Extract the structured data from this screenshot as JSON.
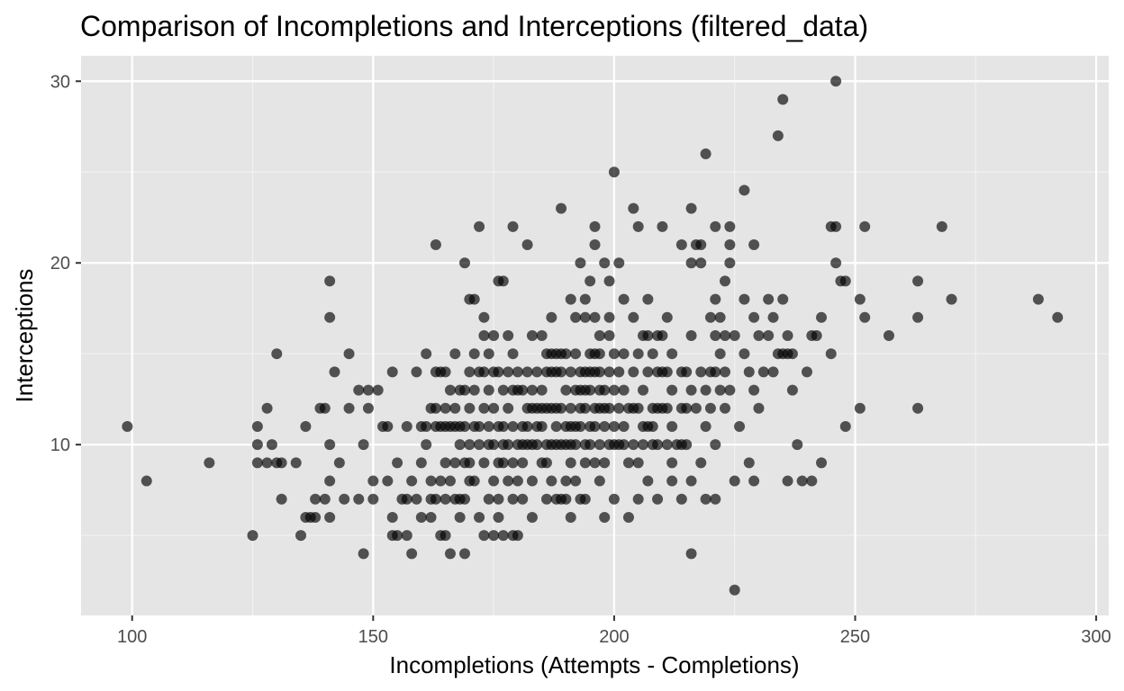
{
  "chart_data": {
    "type": "scatter",
    "title": "Comparison of Incompletions and Interceptions (filtered_data)",
    "xlabel": "Incompletions (Attempts - Completions)",
    "ylabel": "Interceptions",
    "xlim": [
      89.4,
      302.6
    ],
    "ylim": [
      0.6,
      31.4
    ],
    "xticks": [
      100,
      150,
      200,
      250,
      300
    ],
    "yticks": [
      10,
      20,
      30
    ],
    "grid": true,
    "background": "#e5e5e5",
    "point_color": "#000000",
    "point_opacity": 0.65,
    "points": [
      [
        99,
        11
      ],
      [
        103,
        8
      ],
      [
        116,
        9
      ],
      [
        125,
        5
      ],
      [
        126,
        11
      ],
      [
        126,
        10
      ],
      [
        126,
        9
      ],
      [
        128,
        9
      ],
      [
        128,
        12
      ],
      [
        129,
        10
      ],
      [
        130,
        9
      ],
      [
        130,
        15
      ],
      [
        131,
        9
      ],
      [
        131,
        7
      ],
      [
        134,
        9
      ],
      [
        135,
        5
      ],
      [
        136,
        6
      ],
      [
        136,
        11
      ],
      [
        137,
        6
      ],
      [
        138,
        6
      ],
      [
        138,
        7
      ],
      [
        139,
        12
      ],
      [
        140,
        12
      ],
      [
        140,
        7
      ],
      [
        141,
        19
      ],
      [
        141,
        17
      ],
      [
        141,
        10
      ],
      [
        141,
        8
      ],
      [
        141,
        6
      ],
      [
        142,
        14
      ],
      [
        143,
        9
      ],
      [
        144,
        7
      ],
      [
        145,
        15
      ],
      [
        145,
        12
      ],
      [
        147,
        13
      ],
      [
        147,
        7
      ],
      [
        148,
        10
      ],
      [
        148,
        4
      ],
      [
        149,
        13
      ],
      [
        149,
        12
      ],
      [
        150,
        8
      ],
      [
        150,
        7
      ],
      [
        151,
        13
      ],
      [
        152,
        11
      ],
      [
        153,
        11
      ],
      [
        153,
        8
      ],
      [
        154,
        14
      ],
      [
        154,
        6
      ],
      [
        154,
        5
      ],
      [
        155,
        9
      ],
      [
        155,
        5
      ],
      [
        156,
        7
      ],
      [
        157,
        11
      ],
      [
        157,
        7
      ],
      [
        157,
        5
      ],
      [
        158,
        8
      ],
      [
        158,
        4
      ],
      [
        159,
        14
      ],
      [
        159,
        7
      ],
      [
        160,
        11
      ],
      [
        160,
        9
      ],
      [
        160,
        6
      ],
      [
        161,
        15
      ],
      [
        161,
        11
      ],
      [
        161,
        10
      ],
      [
        162,
        12
      ],
      [
        162,
        8
      ],
      [
        162,
        7
      ],
      [
        162,
        6
      ],
      [
        163,
        14
      ],
      [
        163,
        12
      ],
      [
        163,
        11
      ],
      [
        163,
        7
      ],
      [
        163,
        21
      ],
      [
        164,
        14
      ],
      [
        164,
        11
      ],
      [
        164,
        8
      ],
      [
        164,
        5
      ],
      [
        165,
        14
      ],
      [
        165,
        12
      ],
      [
        165,
        11
      ],
      [
        165,
        9
      ],
      [
        165,
        7
      ],
      [
        165,
        5
      ],
      [
        166,
        13
      ],
      [
        166,
        11
      ],
      [
        166,
        8
      ],
      [
        166,
        4
      ],
      [
        167,
        15
      ],
      [
        167,
        12
      ],
      [
        167,
        11
      ],
      [
        167,
        9
      ],
      [
        167,
        7
      ],
      [
        168,
        13
      ],
      [
        168,
        11
      ],
      [
        168,
        10
      ],
      [
        168,
        7
      ],
      [
        168,
        6
      ],
      [
        169,
        13
      ],
      [
        169,
        11
      ],
      [
        169,
        9
      ],
      [
        169,
        7
      ],
      [
        169,
        4
      ],
      [
        169,
        20
      ],
      [
        170,
        14
      ],
      [
        170,
        12
      ],
      [
        170,
        10
      ],
      [
        170,
        9
      ],
      [
        170,
        8
      ],
      [
        170,
        18
      ],
      [
        171,
        15
      ],
      [
        171,
        13
      ],
      [
        171,
        11
      ],
      [
        171,
        8
      ],
      [
        171,
        18
      ],
      [
        172,
        14
      ],
      [
        172,
        11
      ],
      [
        172,
        10
      ],
      [
        172,
        6
      ],
      [
        172,
        22
      ],
      [
        173,
        16
      ],
      [
        173,
        14
      ],
      [
        173,
        12
      ],
      [
        173,
        9
      ],
      [
        173,
        5
      ],
      [
        173,
        17
      ],
      [
        174,
        15
      ],
      [
        174,
        13
      ],
      [
        174,
        11
      ],
      [
        174,
        10
      ],
      [
        174,
        7
      ],
      [
        175,
        14
      ],
      [
        175,
        12
      ],
      [
        175,
        10
      ],
      [
        175,
        8
      ],
      [
        175,
        5
      ],
      [
        175,
        16
      ],
      [
        176,
        14
      ],
      [
        176,
        11
      ],
      [
        176,
        9
      ],
      [
        176,
        7
      ],
      [
        176,
        6
      ],
      [
        176,
        19
      ],
      [
        177,
        13
      ],
      [
        177,
        11
      ],
      [
        177,
        10
      ],
      [
        177,
        9
      ],
      [
        177,
        5
      ],
      [
        177,
        19
      ],
      [
        178,
        14
      ],
      [
        178,
        12
      ],
      [
        178,
        10
      ],
      [
        178,
        8
      ],
      [
        178,
        16
      ],
      [
        179,
        15
      ],
      [
        179,
        13
      ],
      [
        179,
        11
      ],
      [
        179,
        9
      ],
      [
        179,
        7
      ],
      [
        179,
        5
      ],
      [
        179,
        22
      ],
      [
        180,
        14
      ],
      [
        180,
        13
      ],
      [
        180,
        10
      ],
      [
        180,
        8
      ],
      [
        180,
        5
      ],
      [
        181,
        13
      ],
      [
        181,
        11
      ],
      [
        181,
        10
      ],
      [
        181,
        9
      ],
      [
        181,
        7
      ],
      [
        182,
        14
      ],
      [
        182,
        12
      ],
      [
        182,
        11
      ],
      [
        182,
        10
      ],
      [
        182,
        21
      ],
      [
        183,
        16
      ],
      [
        183,
        13
      ],
      [
        183,
        12
      ],
      [
        183,
        10
      ],
      [
        183,
        8
      ],
      [
        183,
        6
      ],
      [
        184,
        14
      ],
      [
        184,
        12
      ],
      [
        184,
        11
      ],
      [
        184,
        10
      ],
      [
        185,
        13
      ],
      [
        185,
        12
      ],
      [
        185,
        11
      ],
      [
        185,
        9
      ],
      [
        185,
        16
      ],
      [
        186,
        15
      ],
      [
        186,
        14
      ],
      [
        186,
        12
      ],
      [
        186,
        10
      ],
      [
        186,
        9
      ],
      [
        186,
        7
      ],
      [
        187,
        15
      ],
      [
        187,
        14
      ],
      [
        187,
        12
      ],
      [
        187,
        10
      ],
      [
        187,
        8
      ],
      [
        187,
        17
      ],
      [
        188,
        15
      ],
      [
        188,
        14
      ],
      [
        188,
        12
      ],
      [
        188,
        11
      ],
      [
        188,
        10
      ],
      [
        188,
        7
      ],
      [
        189,
        15
      ],
      [
        189,
        14
      ],
      [
        189,
        12
      ],
      [
        189,
        10
      ],
      [
        189,
        7
      ],
      [
        189,
        23
      ],
      [
        190,
        15
      ],
      [
        190,
        13
      ],
      [
        190,
        11
      ],
      [
        190,
        10
      ],
      [
        190,
        8
      ],
      [
        190,
        7
      ],
      [
        191,
        18
      ],
      [
        191,
        14
      ],
      [
        191,
        12
      ],
      [
        191,
        11
      ],
      [
        191,
        10
      ],
      [
        191,
        9
      ],
      [
        191,
        6
      ],
      [
        192,
        17
      ],
      [
        192,
        15
      ],
      [
        192,
        13
      ],
      [
        192,
        11
      ],
      [
        192,
        10
      ],
      [
        192,
        8
      ],
      [
        193,
        14
      ],
      [
        193,
        13
      ],
      [
        193,
        12
      ],
      [
        193,
        11
      ],
      [
        193,
        7
      ],
      [
        193,
        20
      ],
      [
        194,
        18
      ],
      [
        194,
        17
      ],
      [
        194,
        14
      ],
      [
        194,
        13
      ],
      [
        194,
        12
      ],
      [
        194,
        10
      ],
      [
        194,
        9
      ],
      [
        194,
        7
      ],
      [
        195,
        15
      ],
      [
        195,
        14
      ],
      [
        195,
        13
      ],
      [
        195,
        11
      ],
      [
        195,
        10
      ],
      [
        195,
        19
      ],
      [
        196,
        17
      ],
      [
        196,
        15
      ],
      [
        196,
        14
      ],
      [
        196,
        12
      ],
      [
        196,
        11
      ],
      [
        196,
        9
      ],
      [
        196,
        22
      ],
      [
        196,
        21
      ],
      [
        197,
        16
      ],
      [
        197,
        14
      ],
      [
        197,
        13
      ],
      [
        197,
        12
      ],
      [
        197,
        10
      ],
      [
        197,
        8
      ],
      [
        197,
        15
      ],
      [
        198,
        13
      ],
      [
        198,
        12
      ],
      [
        198,
        11
      ],
      [
        198,
        9
      ],
      [
        198,
        6
      ],
      [
        198,
        20
      ],
      [
        199,
        16
      ],
      [
        199,
        14
      ],
      [
        199,
        12
      ],
      [
        199,
        10
      ],
      [
        199,
        17
      ],
      [
        199,
        19
      ],
      [
        200,
        15
      ],
      [
        200,
        13
      ],
      [
        200,
        11
      ],
      [
        200,
        10
      ],
      [
        200,
        7
      ],
      [
        200,
        25
      ],
      [
        201,
        14
      ],
      [
        201,
        12
      ],
      [
        201,
        10
      ],
      [
        201,
        20
      ],
      [
        202,
        15
      ],
      [
        202,
        13
      ],
      [
        202,
        11
      ],
      [
        202,
        10
      ],
      [
        202,
        18
      ],
      [
        203,
        12
      ],
      [
        203,
        9
      ],
      [
        203,
        6
      ],
      [
        204,
        17
      ],
      [
        204,
        14
      ],
      [
        204,
        12
      ],
      [
        204,
        10
      ],
      [
        204,
        23
      ],
      [
        205,
        15
      ],
      [
        205,
        12
      ],
      [
        205,
        9
      ],
      [
        205,
        7
      ],
      [
        205,
        22
      ],
      [
        206,
        16
      ],
      [
        206,
        13
      ],
      [
        206,
        11
      ],
      [
        206,
        10
      ],
      [
        207,
        18
      ],
      [
        207,
        16
      ],
      [
        207,
        14
      ],
      [
        207,
        11
      ],
      [
        207,
        8
      ],
      [
        208,
        15
      ],
      [
        208,
        12
      ],
      [
        208,
        11
      ],
      [
        208,
        10
      ],
      [
        209,
        16
      ],
      [
        209,
        14
      ],
      [
        209,
        12
      ],
      [
        209,
        10
      ],
      [
        209,
        7
      ],
      [
        210,
        16
      ],
      [
        210,
        14
      ],
      [
        210,
        12
      ],
      [
        210,
        22
      ],
      [
        211,
        17
      ],
      [
        211,
        14
      ],
      [
        211,
        12
      ],
      [
        211,
        10
      ],
      [
        212,
        15
      ],
      [
        212,
        13
      ],
      [
        212,
        11
      ],
      [
        212,
        9
      ],
      [
        212,
        8
      ],
      [
        213,
        10
      ],
      [
        214,
        21
      ],
      [
        214,
        14
      ],
      [
        214,
        12
      ],
      [
        214,
        10
      ],
      [
        214,
        7
      ],
      [
        215,
        14
      ],
      [
        215,
        12
      ],
      [
        215,
        10
      ],
      [
        216,
        23
      ],
      [
        216,
        20
      ],
      [
        216,
        16
      ],
      [
        216,
        13
      ],
      [
        216,
        8
      ],
      [
        216,
        4
      ],
      [
        217,
        21
      ],
      [
        217,
        12
      ],
      [
        218,
        21
      ],
      [
        218,
        20
      ],
      [
        218,
        14
      ],
      [
        218,
        9
      ],
      [
        219,
        13
      ],
      [
        219,
        11
      ],
      [
        219,
        7
      ],
      [
        219,
        26
      ],
      [
        220,
        17
      ],
      [
        220,
        14
      ],
      [
        220,
        12
      ],
      [
        221,
        22
      ],
      [
        221,
        18
      ],
      [
        221,
        16
      ],
      [
        221,
        14
      ],
      [
        221,
        10
      ],
      [
        221,
        7
      ],
      [
        222,
        17
      ],
      [
        222,
        15
      ],
      [
        222,
        13
      ],
      [
        223,
        19
      ],
      [
        223,
        16
      ],
      [
        223,
        14
      ],
      [
        223,
        12
      ],
      [
        224,
        21
      ],
      [
        224,
        20
      ],
      [
        224,
        22
      ],
      [
        224,
        13
      ],
      [
        225,
        16
      ],
      [
        225,
        8
      ],
      [
        225,
        2
      ],
      [
        226,
        11
      ],
      [
        227,
        24
      ],
      [
        227,
        18
      ],
      [
        227,
        15
      ],
      [
        228,
        14
      ],
      [
        228,
        9
      ],
      [
        229,
        21
      ],
      [
        229,
        17
      ],
      [
        229,
        13
      ],
      [
        229,
        8
      ],
      [
        230,
        16
      ],
      [
        230,
        12
      ],
      [
        231,
        14
      ],
      [
        232,
        18
      ],
      [
        232,
        16
      ],
      [
        233,
        17
      ],
      [
        233,
        14
      ],
      [
        234,
        27
      ],
      [
        234,
        15
      ],
      [
        235,
        29
      ],
      [
        235,
        18
      ],
      [
        235,
        15
      ],
      [
        236,
        16
      ],
      [
        236,
        15
      ],
      [
        236,
        8
      ],
      [
        237,
        15
      ],
      [
        237,
        13
      ],
      [
        238,
        10
      ],
      [
        239,
        8
      ],
      [
        240,
        14
      ],
      [
        241,
        16
      ],
      [
        241,
        8
      ],
      [
        242,
        16
      ],
      [
        243,
        17
      ],
      [
        243,
        9
      ],
      [
        245,
        22
      ],
      [
        245,
        15
      ],
      [
        246,
        30
      ],
      [
        246,
        22
      ],
      [
        246,
        20
      ],
      [
        247,
        19
      ],
      [
        248,
        19
      ],
      [
        248,
        11
      ],
      [
        251,
        18
      ],
      [
        251,
        12
      ],
      [
        252,
        22
      ],
      [
        252,
        17
      ],
      [
        257,
        16
      ],
      [
        263,
        19
      ],
      [
        263,
        17
      ],
      [
        263,
        12
      ],
      [
        268,
        22
      ],
      [
        270,
        18
      ],
      [
        288,
        18
      ],
      [
        292,
        17
      ]
    ]
  }
}
